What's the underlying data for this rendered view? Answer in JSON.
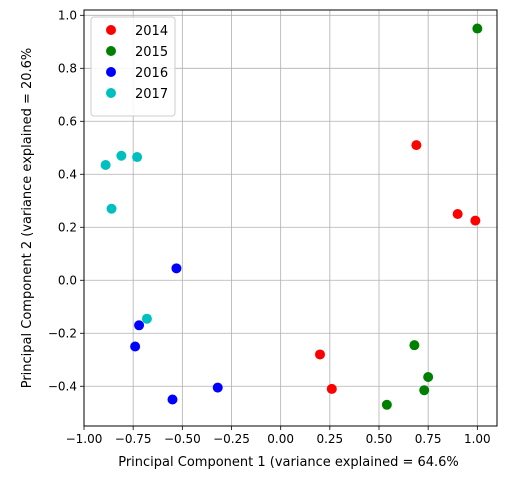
{
  "chart_data": {
    "type": "scatter",
    "title": "",
    "xlabel": "Principal Component 1 (variance explained = 64.6%",
    "ylabel": "Principal Component 2 (variance explained = 20.6%",
    "xlim": [
      -1.0,
      1.1
    ],
    "ylim": [
      -0.55,
      1.02
    ],
    "xticks": [
      -1.0,
      -0.75,
      -0.5,
      -0.25,
      0.0,
      0.25,
      0.5,
      0.75,
      1.0
    ],
    "xtick_labels": [
      "−1.00",
      "−0.75",
      "−0.50",
      "−0.25",
      "0.00",
      "0.25",
      "0.50",
      "0.75",
      "1.00"
    ],
    "yticks": [
      -0.4,
      -0.2,
      0.0,
      0.2,
      0.4,
      0.6,
      0.8,
      1.0
    ],
    "ytick_labels": [
      "−0.4",
      "−0.2",
      "0.0",
      "0.2",
      "0.4",
      "0.6",
      "0.8",
      "1.0"
    ],
    "grid": true,
    "legend_placement": "upper-left",
    "series": [
      {
        "name": "2014",
        "color": "#ff0000",
        "points": [
          [
            0.69,
            0.51
          ],
          [
            0.9,
            0.25
          ],
          [
            0.99,
            0.225
          ],
          [
            0.2,
            -0.28
          ],
          [
            0.26,
            -0.41
          ]
        ]
      },
      {
        "name": "2015",
        "color": "#008000",
        "points": [
          [
            1.0,
            0.95
          ],
          [
            0.68,
            -0.245
          ],
          [
            0.75,
            -0.365
          ],
          [
            0.73,
            -0.415
          ],
          [
            0.54,
            -0.47
          ]
        ]
      },
      {
        "name": "2016",
        "color": "#0000ff",
        "points": [
          [
            -0.53,
            0.045
          ],
          [
            -0.72,
            -0.17
          ],
          [
            -0.74,
            -0.25
          ],
          [
            -0.32,
            -0.405
          ],
          [
            -0.55,
            -0.45
          ]
        ]
      },
      {
        "name": "2017",
        "color": "#00bfbf",
        "points": [
          [
            -0.89,
            0.435
          ],
          [
            -0.81,
            0.47
          ],
          [
            -0.73,
            0.465
          ],
          [
            -0.86,
            0.27
          ],
          [
            -0.68,
            -0.145
          ]
        ]
      }
    ]
  }
}
